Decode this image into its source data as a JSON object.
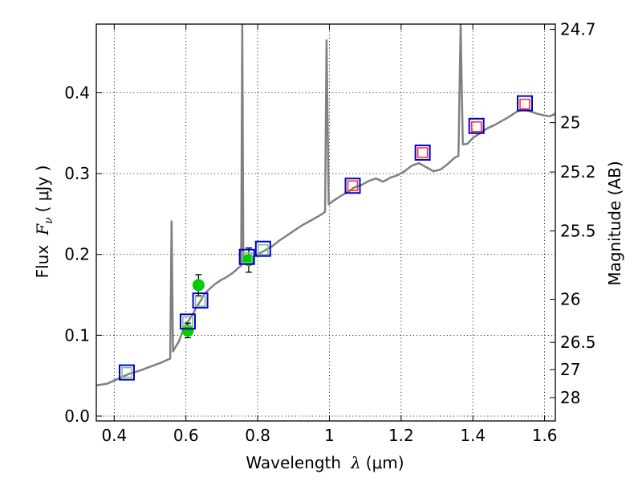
{
  "chart_data": {
    "type": "line",
    "xlabel": {
      "text": "Wavelength",
      "symbol": "λ",
      "unit": "(μm)"
    },
    "ylabel": {
      "text": "Flux",
      "symbol": "F",
      "subscript": "ν",
      "unit": "( μJy )"
    },
    "y2label": "Magnitude (AB)",
    "xlim": [
      0.35,
      1.63
    ],
    "ylim": [
      -0.006,
      0.485
    ],
    "grid": true,
    "x_ticks": [
      0.4,
      0.6,
      0.8,
      1.0,
      1.2,
      1.4,
      1.6
    ],
    "x_tick_labels": [
      "0.4",
      "0.6",
      "0.8",
      "1",
      "1.2",
      "1.4",
      "1.6"
    ],
    "y_ticks": [
      0.0,
      0.1,
      0.2,
      0.3,
      0.4
    ],
    "y_tick_labels": [
      "0.0",
      "0.1",
      "0.2",
      "0.3",
      "0.4"
    ],
    "mag_ticks": [
      {
        "label": "24.7",
        "flux": 0.4786
      },
      {
        "label": "25",
        "flux": 0.3631
      },
      {
        "label": "25.2",
        "flux": 0.302
      },
      {
        "label": "25.5",
        "flux": 0.2291
      },
      {
        "label": "26",
        "flux": 0.1445
      },
      {
        "label": "26.5",
        "flux": 0.0912
      },
      {
        "label": "27",
        "flux": 0.0575
      },
      {
        "label": "28",
        "flux": 0.0229
      }
    ],
    "series": [
      {
        "type": "line",
        "color": "#808080",
        "points": [
          [
            0.35,
            0.038
          ],
          [
            0.38,
            0.04
          ],
          [
            0.41,
            0.046
          ],
          [
            0.44,
            0.052
          ],
          [
            0.47,
            0.056
          ],
          [
            0.5,
            0.061
          ],
          [
            0.53,
            0.066
          ],
          [
            0.55,
            0.07
          ],
          [
            0.556,
            0.071
          ],
          [
            0.56,
            0.241
          ],
          [
            0.564,
            0.08
          ],
          [
            0.57,
            0.085
          ],
          [
            0.58,
            0.092
          ],
          [
            0.59,
            0.104
          ],
          [
            0.6,
            0.113
          ],
          [
            0.61,
            0.12
          ],
          [
            0.62,
            0.127
          ],
          [
            0.63,
            0.135
          ],
          [
            0.64,
            0.142
          ],
          [
            0.65,
            0.15
          ],
          [
            0.66,
            0.155
          ],
          [
            0.67,
            0.159
          ],
          [
            0.68,
            0.163
          ],
          [
            0.69,
            0.166
          ],
          [
            0.7,
            0.169
          ],
          [
            0.71,
            0.171
          ],
          [
            0.72,
            0.174
          ],
          [
            0.73,
            0.177
          ],
          [
            0.74,
            0.181
          ],
          [
            0.75,
            0.185
          ],
          [
            0.754,
            0.186
          ],
          [
            0.757,
            0.485
          ],
          [
            0.76,
            0.19
          ],
          [
            0.77,
            0.192
          ],
          [
            0.78,
            0.195
          ],
          [
            0.79,
            0.198
          ],
          [
            0.8,
            0.2
          ],
          [
            0.82,
            0.205
          ],
          [
            0.84,
            0.21
          ],
          [
            0.86,
            0.217
          ],
          [
            0.88,
            0.223
          ],
          [
            0.9,
            0.229
          ],
          [
            0.92,
            0.235
          ],
          [
            0.94,
            0.24
          ],
          [
            0.96,
            0.245
          ],
          [
            0.98,
            0.25
          ],
          [
            0.988,
            0.253
          ],
          [
            0.992,
            0.465
          ],
          [
            0.998,
            0.262
          ],
          [
            1.01,
            0.266
          ],
          [
            1.03,
            0.272
          ],
          [
            1.05,
            0.277
          ],
          [
            1.07,
            0.283
          ],
          [
            1.09,
            0.286
          ],
          [
            1.11,
            0.291
          ],
          [
            1.13,
            0.294
          ],
          [
            1.15,
            0.29
          ],
          [
            1.17,
            0.295
          ],
          [
            1.19,
            0.298
          ],
          [
            1.21,
            0.303
          ],
          [
            1.23,
            0.31
          ],
          [
            1.25,
            0.313
          ],
          [
            1.27,
            0.308
          ],
          [
            1.29,
            0.303
          ],
          [
            1.31,
            0.305
          ],
          [
            1.33,
            0.312
          ],
          [
            1.35,
            0.32
          ],
          [
            1.36,
            0.322
          ],
          [
            1.366,
            0.485
          ],
          [
            1.372,
            0.336
          ],
          [
            1.385,
            0.337
          ],
          [
            1.4,
            0.344
          ],
          [
            1.42,
            0.35
          ],
          [
            1.44,
            0.356
          ],
          [
            1.46,
            0.36
          ],
          [
            1.48,
            0.365
          ],
          [
            1.5,
            0.37
          ],
          [
            1.52,
            0.376
          ],
          [
            1.54,
            0.38
          ],
          [
            1.56,
            0.377
          ],
          [
            1.58,
            0.374
          ],
          [
            1.6,
            0.372
          ],
          [
            1.615,
            0.371
          ],
          [
            1.63,
            0.374
          ]
        ]
      },
      {
        "type": "scatter",
        "marker": "circle",
        "color": "#00cc00",
        "points": [
          {
            "x": 0.605,
            "y": 0.106,
            "yerr": 0.009
          },
          {
            "x": 0.635,
            "y": 0.162,
            "yerr": 0.013
          },
          {
            "x": 0.775,
            "y": 0.193,
            "yerr": 0.015
          }
        ]
      },
      {
        "type": "scatter",
        "marker": "square",
        "edgecolor": "#0000cc",
        "points": [
          {
            "x": 0.435,
            "y": 0.054
          },
          {
            "x": 0.605,
            "y": 0.117
          },
          {
            "x": 0.64,
            "y": 0.143
          },
          {
            "x": 0.77,
            "y": 0.197
          },
          {
            "x": 0.815,
            "y": 0.207
          },
          {
            "x": 1.065,
            "y": 0.285
          },
          {
            "x": 1.26,
            "y": 0.326
          },
          {
            "x": 1.41,
            "y": 0.359
          },
          {
            "x": 1.545,
            "y": 0.387
          }
        ]
      },
      {
        "type": "scatter",
        "marker": "square",
        "edgecolor": "#80c080",
        "points": [
          {
            "x": 0.435,
            "y": 0.054
          },
          {
            "x": 0.605,
            "y": 0.117
          },
          {
            "x": 0.64,
            "y": 0.142
          },
          {
            "x": 0.77,
            "y": 0.196
          },
          {
            "x": 0.815,
            "y": 0.206
          }
        ]
      },
      {
        "type": "scatter",
        "marker": "square",
        "edgecolor": "#ff3030",
        "points": [
          {
            "x": 1.065,
            "y": 0.285
          },
          {
            "x": 1.26,
            "y": 0.326
          },
          {
            "x": 1.41,
            "y": 0.358
          },
          {
            "x": 1.545,
            "y": 0.386
          }
        ]
      }
    ]
  }
}
